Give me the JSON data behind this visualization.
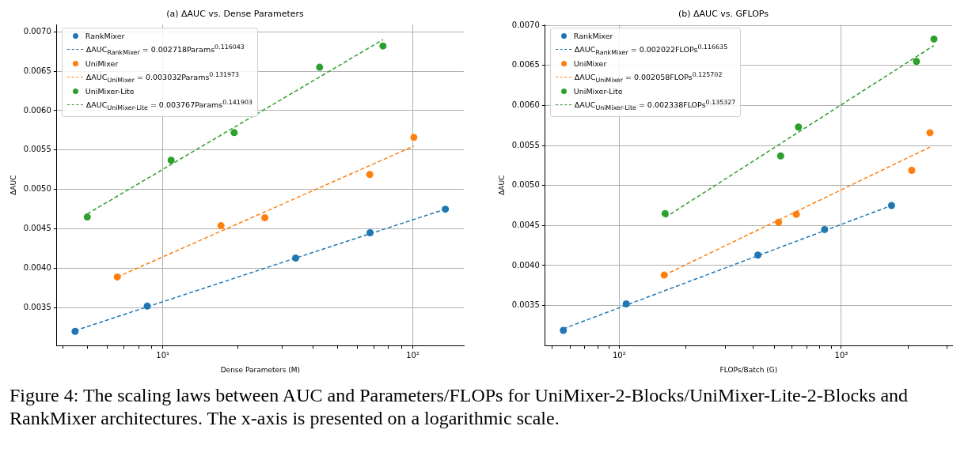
{
  "chart_data": [
    {
      "type": "scatter",
      "title": "(a) ΔAUC vs. Dense Parameters",
      "xlabel": "Dense Parameters (M)",
      "ylabel": "ΔAUC",
      "log": "x",
      "grid": true,
      "legend": "top left",
      "xlim": [
        3.77,
        160
      ],
      "ylim": [
        0.00302,
        0.00709
      ],
      "xticks": [
        {
          "value": 4,
          "label": null
        },
        {
          "value": 5,
          "label": null
        },
        {
          "value": 6,
          "label": null
        },
        {
          "value": 7,
          "label": null
        },
        {
          "value": 8,
          "label": null
        },
        {
          "value": 9,
          "label": null
        },
        {
          "value": 10,
          "label": "10¹"
        },
        {
          "value": 20,
          "label": null
        },
        {
          "value": 30,
          "label": null
        },
        {
          "value": 40,
          "label": null
        },
        {
          "value": 50,
          "label": null
        },
        {
          "value": 60,
          "label": null
        },
        {
          "value": 70,
          "label": null
        },
        {
          "value": 80,
          "label": null
        },
        {
          "value": 90,
          "label": null
        },
        {
          "value": 100,
          "label": "10²"
        }
      ],
      "yticks": [
        0.0035,
        {
          "value": 0.004,
          "label": "0.0040"
        },
        0.0045,
        {
          "value": 0.005,
          "label": "0.0050"
        },
        0.0055,
        {
          "value": 0.006,
          "label": "0.0060"
        },
        0.0065,
        {
          "value": 0.007,
          "label": "0.0070"
        }
      ],
      "series": [
        {
          "name": "RankMixer",
          "marker": "circle",
          "color": "#1f77b4",
          "x": [
            4.46,
            8.67,
            34.0,
            67.5,
            135
          ],
          "values": [
            0.0032,
            0.00352,
            0.00413,
            0.00445,
            0.00475
          ]
        },
        {
          "name": "ΔAUC$_{RankMixer}$ = 0.002718Params$^{0.116043}$",
          "type": "line",
          "line_style": "dashed",
          "color": "#1f77b4",
          "x": [
            4.46,
            34.0,
            135
          ],
          "values": [
            0.00321,
            0.00413,
            0.00475
          ]
        },
        {
          "name": "UniMixer",
          "marker": "circle",
          "color": "#ff7f0e",
          "x": [
            6.58,
            17.1,
            25.6,
            67.3,
            101
          ],
          "values": [
            0.00389,
            0.00454,
            0.00464,
            0.00519,
            0.00566
          ]
        },
        {
          "name": "ΔAUC$_{UniMixer}$ = 0.003032Params$^{0.131973}$",
          "type": "line",
          "line_style": "dashed",
          "color": "#ff7f0e",
          "x": [
            6.58,
            101
          ],
          "values": [
            0.00389,
            0.00555
          ]
        },
        {
          "name": "UniMixer-Lite",
          "marker": "circle",
          "color": "#2ca02c",
          "x": [
            4.99,
            10.8,
            19.3,
            42.4,
            76.0
          ],
          "values": [
            0.00465,
            0.00537,
            0.00572,
            0.00655,
            0.00682
          ]
        },
        {
          "name": "ΔAUC$_{UniMixer-Lite}$ = 0.003767Params$^{0.141903}$",
          "type": "line",
          "line_style": "dashed",
          "color": "#2ca02c",
          "x": [
            4.99,
            76.0
          ],
          "values": [
            0.00469,
            0.0069
          ]
        }
      ]
    },
    {
      "type": "scatter",
      "title": "(b) ΔAUC vs. GFLOPs",
      "xlabel": "FLOPs/Batch (G)",
      "ylabel": "ΔAUC",
      "log": "x",
      "grid": true,
      "legend": "top left",
      "xlim": [
        46.4,
        3155
      ],
      "ylim": [
        0.003,
        0.00701
      ],
      "xticks": [
        {
          "value": 50,
          "label": null
        },
        {
          "value": 60,
          "label": null
        },
        {
          "value": 70,
          "label": null
        },
        {
          "value": 80,
          "label": null
        },
        {
          "value": 90,
          "label": null
        },
        {
          "value": 100,
          "label": "10²"
        },
        {
          "value": 200,
          "label": null
        },
        {
          "value": 300,
          "label": null
        },
        {
          "value": 400,
          "label": null
        },
        {
          "value": 500,
          "label": null
        },
        {
          "value": 600,
          "label": null
        },
        {
          "value": 700,
          "label": null
        },
        {
          "value": 800,
          "label": null
        },
        {
          "value": 900,
          "label": null
        },
        {
          "value": 1000,
          "label": "10³"
        },
        {
          "value": 2000,
          "label": null
        },
        {
          "value": 3000,
          "label": null
        }
      ],
      "yticks": [
        0.0035,
        {
          "value": 0.004,
          "label": "0.0040"
        },
        0.0045,
        {
          "value": 0.005,
          "label": "0.0050"
        },
        0.0055,
        {
          "value": 0.006,
          "label": "0.0060"
        },
        0.0065,
        {
          "value": 0.007,
          "label": "0.0070"
        }
      ],
      "series": [
        {
          "name": "RankMixer",
          "marker": "circle",
          "color": "#1f77b4",
          "x": [
            56.0,
            107.5,
            421,
            841,
            1683
          ],
          "values": [
            0.00319,
            0.00352,
            0.00413,
            0.00445,
            0.00475
          ]
        },
        {
          "name": "ΔAUC$_{RankMixer}$ = 0.002022FLOPs$^{0.116635}$",
          "type": "line",
          "line_style": "dashed",
          "color": "#1f77b4",
          "x": [
            56.0,
            1683
          ],
          "values": [
            0.00321,
            0.00475
          ]
        },
        {
          "name": "UniMixer",
          "marker": "circle",
          "color": "#ff7f0e",
          "x": [
            159.4,
            522,
            627,
            2075,
            2506
          ],
          "values": [
            0.00388,
            0.00454,
            0.00464,
            0.00519,
            0.00566
          ]
        },
        {
          "name": "ΔAUC$_{UniMixer}$ = 0.002058FLOPs$^{0.125702}$",
          "type": "line",
          "line_style": "dashed",
          "color": "#ff7f0e",
          "x": [
            159.4,
            2506
          ],
          "values": [
            0.00388,
            0.00548
          ]
        },
        {
          "name": "UniMixer-Lite",
          "marker": "circle",
          "color": "#2ca02c",
          "x": [
            160.9,
            533,
            641,
            2178,
            2612
          ],
          "values": [
            0.00465,
            0.00537,
            0.00573,
            0.00655,
            0.00683
          ]
        },
        {
          "name": "ΔAUC$_{UniMixer-Lite}$ = 0.002338FLOPs$^{0.135327}$",
          "type": "line",
          "line_style": "dashed",
          "color": "#2ca02c",
          "x": [
            160.9,
            2612
          ],
          "values": [
            0.0046,
            0.00675
          ]
        }
      ],
      "annotations": [
        "Figure 4: The scaling laws between AUC and Parameters/FLOPs for UniMixer-2-Blocks/UniMixer-Lite-2-Blocks and RankMixer architectures. The x-axis is presented on a logarithmic scale."
      ]
    }
  ]
}
